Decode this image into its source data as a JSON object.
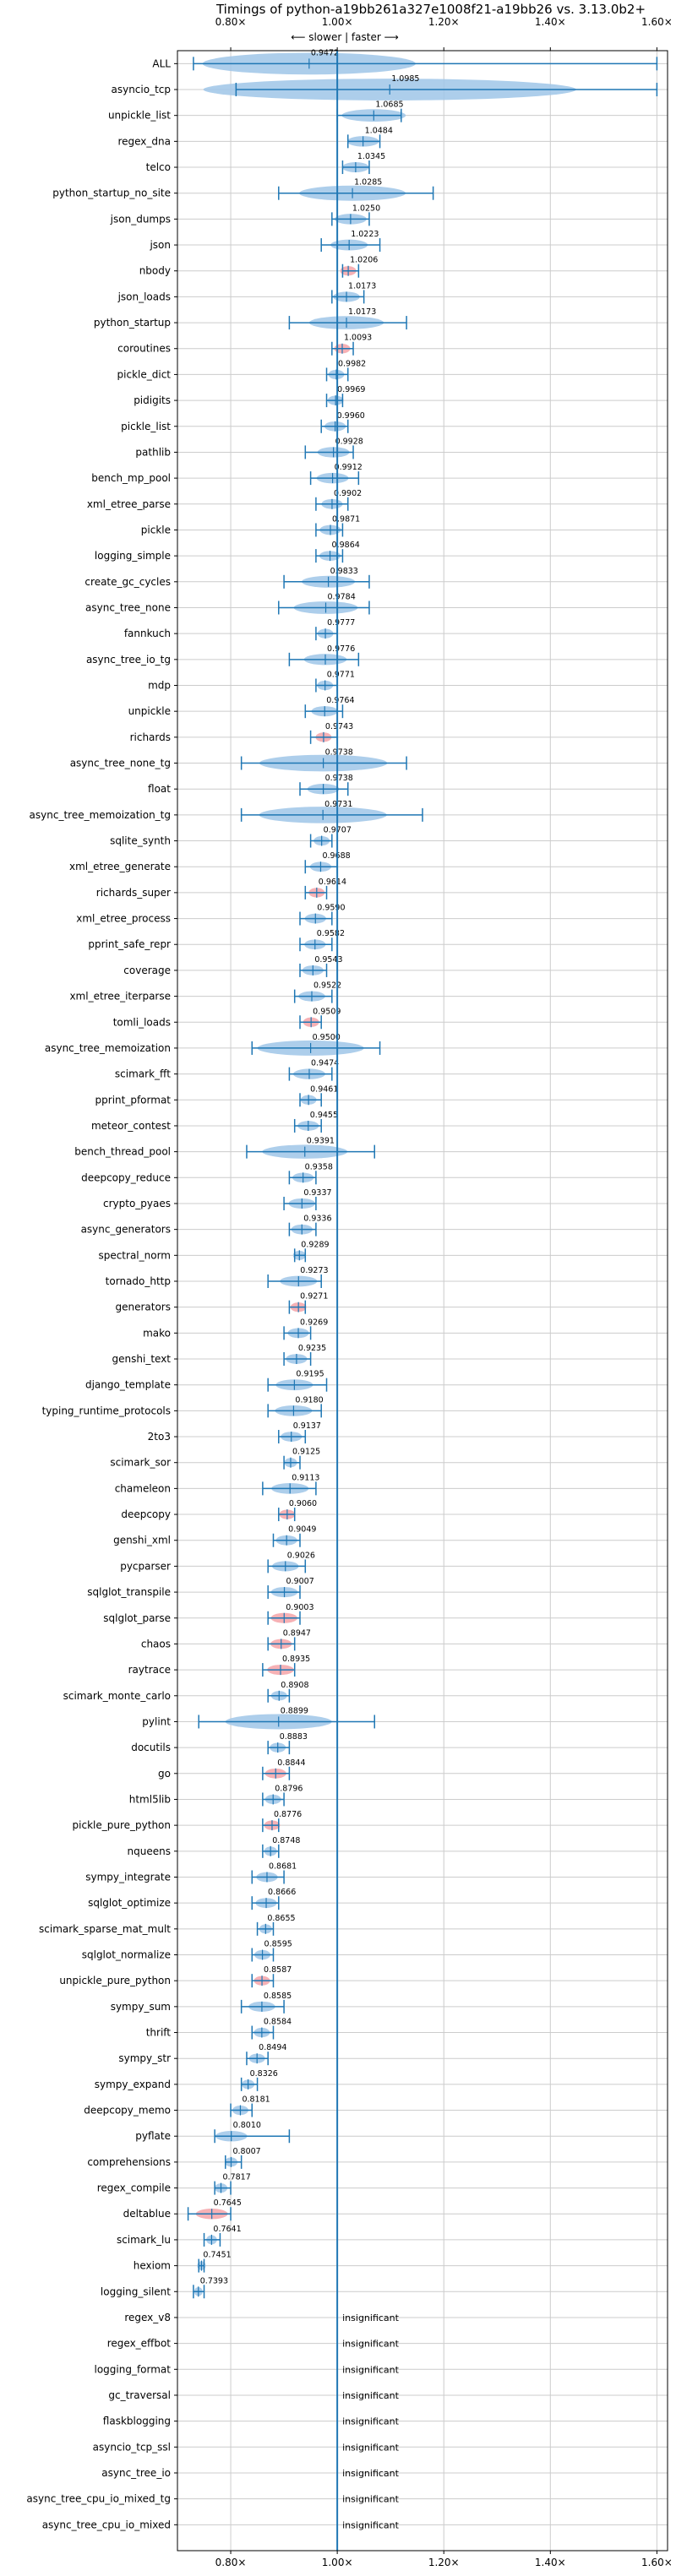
{
  "chart_data": {
    "type": "violin",
    "title": "Timings of python-a19bb261a327e1008f21-a19bb26 vs. 3.13.0b2+",
    "direction_label": "⟵ slower | faster ⟶",
    "xlim": [
      0.7,
      1.62
    ],
    "x_ticks": [
      0.8,
      1.0,
      1.2,
      1.4,
      1.6
    ],
    "x_tick_labels": [
      "0.80×",
      "1.00×",
      "1.20×",
      "1.40×",
      "1.60×"
    ],
    "grid": true,
    "baseline": 1.0,
    "colors": {
      "violin": "#9fc5e8",
      "significant_slow": "#f4a3a8",
      "accent": "#1f77b4",
      "grid": "#cccccc"
    },
    "insignificant_label": "insignificant",
    "benchmarks": [
      {
        "name": "ALL",
        "value": 0.9472,
        "label": "0.9472",
        "min": 0.73,
        "max": 1.6,
        "spread": 0.2
      },
      {
        "name": "asyncio_tcp",
        "value": 1.0985,
        "label": "1.0985",
        "min": 0.81,
        "max": 1.6,
        "spread": 0.35
      },
      {
        "name": "unpickle_list",
        "value": 1.0685,
        "label": "1.0685",
        "min": 1.0,
        "max": 1.12,
        "spread": 0.06
      },
      {
        "name": "regex_dna",
        "value": 1.0484,
        "label": "1.0484",
        "min": 1.02,
        "max": 1.08,
        "spread": 0.03
      },
      {
        "name": "telco",
        "value": 1.0345,
        "label": "1.0345",
        "min": 1.01,
        "max": 1.06,
        "spread": 0.025
      },
      {
        "name": "python_startup_no_site",
        "value": 1.0285,
        "label": "1.0285",
        "min": 0.89,
        "max": 1.18,
        "spread": 0.1
      },
      {
        "name": "json_dumps",
        "value": 1.025,
        "label": "1.0250",
        "min": 0.99,
        "max": 1.06,
        "spread": 0.03
      },
      {
        "name": "json",
        "value": 1.0223,
        "label": "1.0223",
        "min": 0.97,
        "max": 1.08,
        "spread": 0.035
      },
      {
        "name": "nbody",
        "value": 1.0206,
        "label": "1.0206",
        "min": 1.01,
        "max": 1.04,
        "spread": 0.015,
        "slower": true
      },
      {
        "name": "json_loads",
        "value": 1.0173,
        "label": "1.0173",
        "min": 0.99,
        "max": 1.05,
        "spread": 0.025
      },
      {
        "name": "python_startup",
        "value": 1.0173,
        "label": "1.0173",
        "min": 0.91,
        "max": 1.13,
        "spread": 0.07
      },
      {
        "name": "coroutines",
        "value": 1.0093,
        "label": "1.0093",
        "min": 0.99,
        "max": 1.03,
        "spread": 0.015,
        "slower": true
      },
      {
        "name": "pickle_dict",
        "value": 0.9982,
        "label": "0.9982",
        "min": 0.98,
        "max": 1.02,
        "spread": 0.015
      },
      {
        "name": "pidigits",
        "value": 0.9969,
        "label": "0.9969",
        "min": 0.98,
        "max": 1.01,
        "spread": 0.015
      },
      {
        "name": "pickle_list",
        "value": 0.996,
        "label": "0.9960",
        "min": 0.97,
        "max": 1.02,
        "spread": 0.02
      },
      {
        "name": "pathlib",
        "value": 0.9928,
        "label": "0.9928",
        "min": 0.94,
        "max": 1.03,
        "spread": 0.03
      },
      {
        "name": "bench_mp_pool",
        "value": 0.9912,
        "label": "0.9912",
        "min": 0.95,
        "max": 1.04,
        "spread": 0.03
      },
      {
        "name": "xml_etree_parse",
        "value": 0.9902,
        "label": "0.9902",
        "min": 0.96,
        "max": 1.02,
        "spread": 0.02
      },
      {
        "name": "pickle",
        "value": 0.9871,
        "label": "0.9871",
        "min": 0.96,
        "max": 1.01,
        "spread": 0.02
      },
      {
        "name": "logging_simple",
        "value": 0.9864,
        "label": "0.9864",
        "min": 0.96,
        "max": 1.01,
        "spread": 0.02
      },
      {
        "name": "create_gc_cycles",
        "value": 0.9833,
        "label": "0.9833",
        "min": 0.9,
        "max": 1.06,
        "spread": 0.05
      },
      {
        "name": "async_tree_none",
        "value": 0.9784,
        "label": "0.9784",
        "min": 0.89,
        "max": 1.06,
        "spread": 0.06
      },
      {
        "name": "fannkuch",
        "value": 0.9777,
        "label": "0.9777",
        "min": 0.96,
        "max": 1.0,
        "spread": 0.015
      },
      {
        "name": "async_tree_io_tg",
        "value": 0.9776,
        "label": "0.9776",
        "min": 0.91,
        "max": 1.04,
        "spread": 0.04
      },
      {
        "name": "mdp",
        "value": 0.9771,
        "label": "0.9771",
        "min": 0.96,
        "max": 1.0,
        "spread": 0.015
      },
      {
        "name": "unpickle",
        "value": 0.9764,
        "label": "0.9764",
        "min": 0.94,
        "max": 1.01,
        "spread": 0.025
      },
      {
        "name": "richards",
        "value": 0.9743,
        "label": "0.9743",
        "min": 0.95,
        "max": 1.0,
        "spread": 0.015,
        "slower": true
      },
      {
        "name": "async_tree_none_tg",
        "value": 0.9738,
        "label": "0.9738",
        "min": 0.82,
        "max": 1.13,
        "spread": 0.12
      },
      {
        "name": "float",
        "value": 0.9738,
        "label": "0.9738",
        "min": 0.93,
        "max": 1.02,
        "spread": 0.03
      },
      {
        "name": "async_tree_memoization_tg",
        "value": 0.9731,
        "label": "0.9731",
        "min": 0.82,
        "max": 1.16,
        "spread": 0.12
      },
      {
        "name": "sqlite_synth",
        "value": 0.9707,
        "label": "0.9707",
        "min": 0.95,
        "max": 0.99,
        "spread": 0.015
      },
      {
        "name": "xml_etree_generate",
        "value": 0.9688,
        "label": "0.9688",
        "min": 0.94,
        "max": 1.0,
        "spread": 0.02
      },
      {
        "name": "richards_super",
        "value": 0.9614,
        "label": "0.9614",
        "min": 0.94,
        "max": 0.98,
        "spread": 0.015,
        "slower": true
      },
      {
        "name": "xml_etree_process",
        "value": 0.959,
        "label": "0.9590",
        "min": 0.93,
        "max": 0.99,
        "spread": 0.02
      },
      {
        "name": "pprint_safe_repr",
        "value": 0.9582,
        "label": "0.9582",
        "min": 0.93,
        "max": 0.99,
        "spread": 0.02
      },
      {
        "name": "coverage",
        "value": 0.9543,
        "label": "0.9543",
        "min": 0.93,
        "max": 0.98,
        "spread": 0.02
      },
      {
        "name": "xml_etree_iterparse",
        "value": 0.9522,
        "label": "0.9522",
        "min": 0.92,
        "max": 0.99,
        "spread": 0.025
      },
      {
        "name": "tomli_loads",
        "value": 0.9509,
        "label": "0.9509",
        "min": 0.93,
        "max": 0.97,
        "spread": 0.015,
        "slower": true
      },
      {
        "name": "async_tree_memoization",
        "value": 0.95,
        "label": "0.9500",
        "min": 0.84,
        "max": 1.08,
        "spread": 0.1
      },
      {
        "name": "scimark_fft",
        "value": 0.9474,
        "label": "0.9474",
        "min": 0.91,
        "max": 0.99,
        "spread": 0.03
      },
      {
        "name": "pprint_pformat",
        "value": 0.9461,
        "label": "0.9461",
        "min": 0.93,
        "max": 0.97,
        "spread": 0.015
      },
      {
        "name": "meteor_contest",
        "value": 0.9455,
        "label": "0.9455",
        "min": 0.92,
        "max": 0.97,
        "spread": 0.02
      },
      {
        "name": "bench_thread_pool",
        "value": 0.9391,
        "label": "0.9391",
        "min": 0.83,
        "max": 1.07,
        "spread": 0.08
      },
      {
        "name": "deepcopy_reduce",
        "value": 0.9358,
        "label": "0.9358",
        "min": 0.91,
        "max": 0.96,
        "spread": 0.02
      },
      {
        "name": "crypto_pyaes",
        "value": 0.9337,
        "label": "0.9337",
        "min": 0.9,
        "max": 0.96,
        "spread": 0.025
      },
      {
        "name": "async_generators",
        "value": 0.9336,
        "label": "0.9336",
        "min": 0.91,
        "max": 0.96,
        "spread": 0.02
      },
      {
        "name": "spectral_norm",
        "value": 0.9289,
        "label": "0.9289",
        "min": 0.92,
        "max": 0.94,
        "spread": 0.012
      },
      {
        "name": "tornado_http",
        "value": 0.9273,
        "label": "0.9273",
        "min": 0.87,
        "max": 0.97,
        "spread": 0.035
      },
      {
        "name": "generators",
        "value": 0.9271,
        "label": "0.9271",
        "min": 0.91,
        "max": 0.94,
        "spread": 0.015,
        "slower": true
      },
      {
        "name": "mako",
        "value": 0.9269,
        "label": "0.9269",
        "min": 0.9,
        "max": 0.95,
        "spread": 0.02
      },
      {
        "name": "genshi_text",
        "value": 0.9235,
        "label": "0.9235",
        "min": 0.9,
        "max": 0.95,
        "spread": 0.02
      },
      {
        "name": "django_template",
        "value": 0.9195,
        "label": "0.9195",
        "min": 0.87,
        "max": 0.98,
        "spread": 0.035
      },
      {
        "name": "typing_runtime_protocols",
        "value": 0.918,
        "label": "0.9180",
        "min": 0.87,
        "max": 0.97,
        "spread": 0.035
      },
      {
        "name": "2to3",
        "value": 0.9137,
        "label": "0.9137",
        "min": 0.89,
        "max": 0.94,
        "spread": 0.02
      },
      {
        "name": "scimark_sor",
        "value": 0.9125,
        "label": "0.9125",
        "min": 0.9,
        "max": 0.93,
        "spread": 0.012
      },
      {
        "name": "chameleon",
        "value": 0.9113,
        "label": "0.9113",
        "min": 0.86,
        "max": 0.96,
        "spread": 0.035
      },
      {
        "name": "deepcopy",
        "value": 0.906,
        "label": "0.9060",
        "min": 0.89,
        "max": 0.92,
        "spread": 0.015,
        "slower": true
      },
      {
        "name": "genshi_xml",
        "value": 0.9049,
        "label": "0.9049",
        "min": 0.88,
        "max": 0.93,
        "spread": 0.02
      },
      {
        "name": "pycparser",
        "value": 0.9026,
        "label": "0.9026",
        "min": 0.87,
        "max": 0.94,
        "spread": 0.025
      },
      {
        "name": "sqlglot_transpile",
        "value": 0.9007,
        "label": "0.9007",
        "min": 0.87,
        "max": 0.93,
        "spread": 0.025
      },
      {
        "name": "sqlglot_parse",
        "value": 0.9003,
        "label": "0.9003",
        "min": 0.87,
        "max": 0.93,
        "spread": 0.025,
        "slower": true
      },
      {
        "name": "chaos",
        "value": 0.8947,
        "label": "0.8947",
        "min": 0.87,
        "max": 0.92,
        "spread": 0.02,
        "slower": true
      },
      {
        "name": "raytrace",
        "value": 0.8935,
        "label": "0.8935",
        "min": 0.86,
        "max": 0.92,
        "spread": 0.025,
        "slower": true
      },
      {
        "name": "scimark_monte_carlo",
        "value": 0.8908,
        "label": "0.8908",
        "min": 0.87,
        "max": 0.91,
        "spread": 0.015
      },
      {
        "name": "pylint",
        "value": 0.8899,
        "label": "0.8899",
        "min": 0.74,
        "max": 1.07,
        "spread": 0.1
      },
      {
        "name": "docutils",
        "value": 0.8883,
        "label": "0.8883",
        "min": 0.87,
        "max": 0.91,
        "spread": 0.015
      },
      {
        "name": "go",
        "value": 0.8844,
        "label": "0.8844",
        "min": 0.86,
        "max": 0.91,
        "spread": 0.02,
        "slower": true
      },
      {
        "name": "html5lib",
        "value": 0.8796,
        "label": "0.8796",
        "min": 0.86,
        "max": 0.9,
        "spread": 0.015
      },
      {
        "name": "pickle_pure_python",
        "value": 0.8776,
        "label": "0.8776",
        "min": 0.86,
        "max": 0.89,
        "spread": 0.015,
        "slower": true
      },
      {
        "name": "nqueens",
        "value": 0.8748,
        "label": "0.8748",
        "min": 0.86,
        "max": 0.89,
        "spread": 0.012
      },
      {
        "name": "sympy_integrate",
        "value": 0.8681,
        "label": "0.8681",
        "min": 0.84,
        "max": 0.9,
        "spread": 0.02
      },
      {
        "name": "sqlglot_optimize",
        "value": 0.8666,
        "label": "0.8666",
        "min": 0.84,
        "max": 0.89,
        "spread": 0.02
      },
      {
        "name": "scimark_sparse_mat_mult",
        "value": 0.8655,
        "label": "0.8655",
        "min": 0.85,
        "max": 0.88,
        "spread": 0.012
      },
      {
        "name": "sqlglot_normalize",
        "value": 0.8595,
        "label": "0.8595",
        "min": 0.84,
        "max": 0.88,
        "spread": 0.015
      },
      {
        "name": "unpickle_pure_python",
        "value": 0.8587,
        "label": "0.8587",
        "min": 0.84,
        "max": 0.88,
        "spread": 0.015,
        "slower": true
      },
      {
        "name": "sympy_sum",
        "value": 0.8585,
        "label": "0.8585",
        "min": 0.82,
        "max": 0.9,
        "spread": 0.025
      },
      {
        "name": "thrift",
        "value": 0.8584,
        "label": "0.8584",
        "min": 0.84,
        "max": 0.88,
        "spread": 0.015
      },
      {
        "name": "sympy_str",
        "value": 0.8494,
        "label": "0.8494",
        "min": 0.83,
        "max": 0.87,
        "spread": 0.015
      },
      {
        "name": "sympy_expand",
        "value": 0.8326,
        "label": "0.8326",
        "min": 0.82,
        "max": 0.85,
        "spread": 0.012
      },
      {
        "name": "deepcopy_memo",
        "value": 0.8181,
        "label": "0.8181",
        "min": 0.8,
        "max": 0.84,
        "spread": 0.015
      },
      {
        "name": "pyflate",
        "value": 0.801,
        "label": "0.8010",
        "min": 0.77,
        "max": 0.91,
        "spread": 0.03
      },
      {
        "name": "comprehensions",
        "value": 0.8007,
        "label": "0.8007",
        "min": 0.79,
        "max": 0.82,
        "spread": 0.012
      },
      {
        "name": "regex_compile",
        "value": 0.7817,
        "label": "0.7817",
        "min": 0.77,
        "max": 0.8,
        "spread": 0.012
      },
      {
        "name": "deltablue",
        "value": 0.7645,
        "label": "0.7645",
        "min": 0.72,
        "max": 0.8,
        "spread": 0.03,
        "slower": true
      },
      {
        "name": "scimark_lu",
        "value": 0.7641,
        "label": "0.7641",
        "min": 0.75,
        "max": 0.78,
        "spread": 0.01
      },
      {
        "name": "hexiom",
        "value": 0.7451,
        "label": "0.7451",
        "min": 0.74,
        "max": 0.75,
        "spread": 0.008
      },
      {
        "name": "logging_silent",
        "value": 0.7393,
        "label": "0.7393",
        "min": 0.73,
        "max": 0.75,
        "spread": 0.008
      },
      {
        "name": "regex_v8",
        "value": null,
        "label": "insignificant"
      },
      {
        "name": "regex_effbot",
        "value": null,
        "label": "insignificant"
      },
      {
        "name": "logging_format",
        "value": null,
        "label": "insignificant"
      },
      {
        "name": "gc_traversal",
        "value": null,
        "label": "insignificant"
      },
      {
        "name": "flaskblogging",
        "value": null,
        "label": "insignificant"
      },
      {
        "name": "asyncio_tcp_ssl",
        "value": null,
        "label": "insignificant"
      },
      {
        "name": "async_tree_io",
        "value": null,
        "label": "insignificant"
      },
      {
        "name": "async_tree_cpu_io_mixed_tg",
        "value": null,
        "label": "insignificant"
      },
      {
        "name": "async_tree_cpu_io_mixed",
        "value": null,
        "label": "insignificant"
      }
    ]
  }
}
